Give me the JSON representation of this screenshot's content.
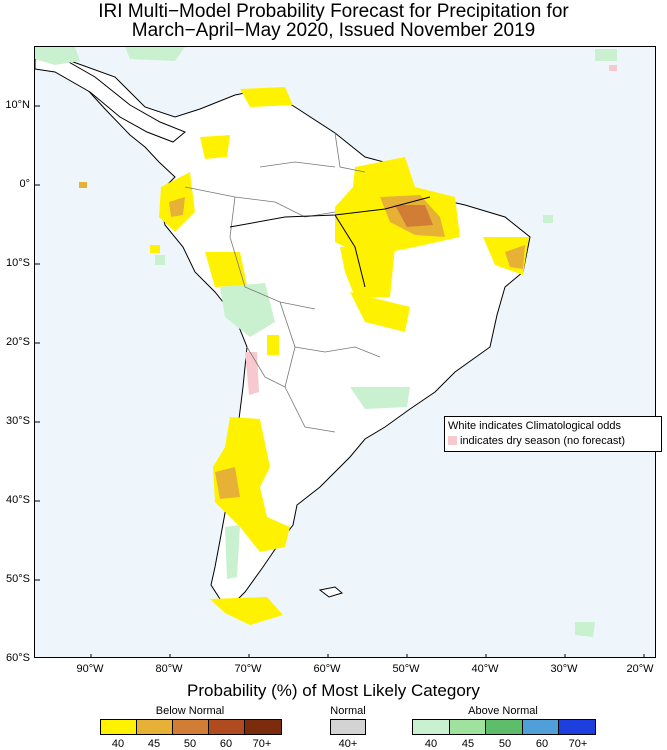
{
  "title": {
    "line1": "IRI Multi−Model Probability Forecast for Precipitation for",
    "line2": "March−April−May 2020, Issued November 2019"
  },
  "axes": {
    "lat_labels": [
      "10°N",
      "0°",
      "10°S",
      "20°S",
      "30°S",
      "40°S",
      "50°S",
      "60°S"
    ],
    "lon_labels": [
      "90°W",
      "80°W",
      "70°W",
      "60°W",
      "50°W",
      "40°W",
      "30°W",
      "20°W"
    ]
  },
  "note": {
    "line1": "White indicates Climatological odds",
    "line2": "indicates dry season (no forecast)",
    "dry_color": "#f7c9cf"
  },
  "caption": "Probability (%) of Most Likely Category",
  "legend": {
    "below": {
      "title": "Below Normal",
      "labels": [
        "40",
        "45",
        "50",
        "60",
        "70+"
      ],
      "colors": [
        "#fff200",
        "#e6b135",
        "#d27d35",
        "#b04a1f",
        "#7a2c0d"
      ]
    },
    "normal": {
      "title": "Normal",
      "labels": [
        "40+"
      ],
      "colors": [
        "#d3d3d3"
      ]
    },
    "above": {
      "title": "Above Normal",
      "labels": [
        "40",
        "45",
        "50",
        "60",
        "70+"
      ],
      "colors": [
        "#c9f0cf",
        "#9ee29d",
        "#5ebd6a",
        "#4f9fd8",
        "#1d3fe0"
      ]
    }
  },
  "map_colors": {
    "ocean": "#eef6fc",
    "land": "#ffffff",
    "below40": "#fff200",
    "below45": "#e6b135",
    "below50": "#d27d35",
    "above40": "#c9f0cf",
    "dry": "#f7c9cf"
  }
}
